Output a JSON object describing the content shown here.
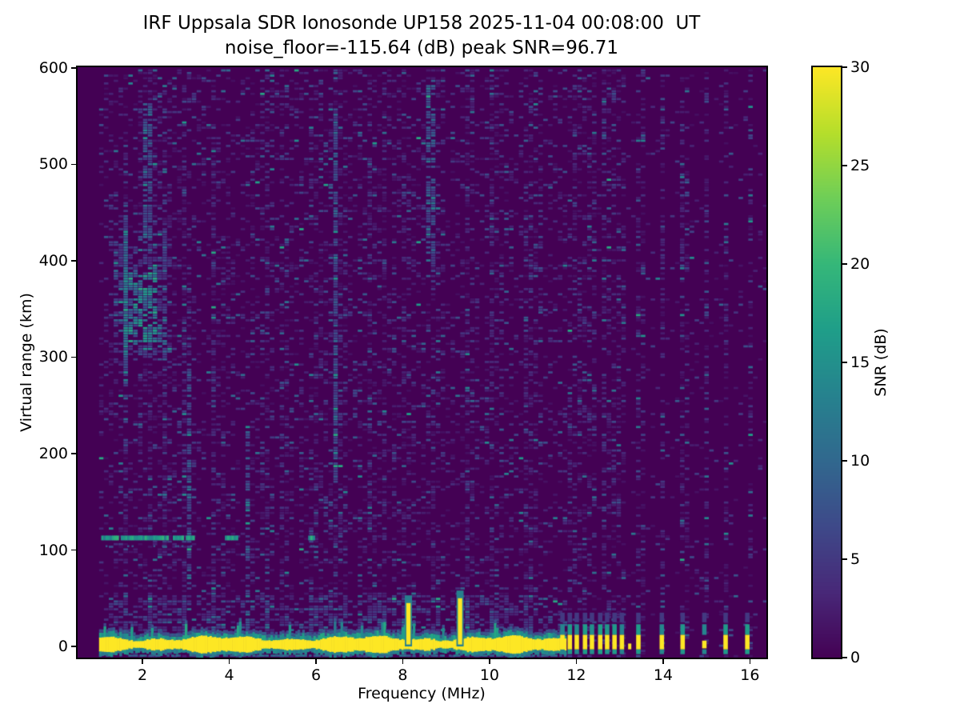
{
  "figure": {
    "title_line1": "IRF Uppsala SDR Ionosonde UP158 2025-11-04 00:08:00  UT",
    "title_line2": "noise_floor=-115.64 (dB) peak SNR=96.71",
    "xlabel": "Frequency (MHz)",
    "ylabel": "Virtual range (km)",
    "colorbar_label": "SNR (dB)"
  },
  "chart_data": {
    "type": "heatmap",
    "title": "IRF Uppsala SDR Ionosonde UP158 2025-11-04 00:08:00  UT",
    "subtitle": "noise_floor=-115.64 (dB) peak SNR=96.71",
    "station": "IRF Uppsala SDR Ionosonde UP158",
    "timestamp_ut": "2025-11-04 00:08:00",
    "noise_floor_db": -115.64,
    "peak_snr_db": 96.71,
    "colormap": "viridis",
    "xlabel": "Frequency (MHz)",
    "ylabel": "Virtual range (km)",
    "x_axis": {
      "range": [
        0.506,
        16.38
      ],
      "ticks": [
        2,
        4,
        6,
        8,
        10,
        12,
        14,
        16
      ]
    },
    "y_axis": {
      "range": [
        -11.6,
        600.8
      ],
      "ticks": [
        0,
        100,
        200,
        300,
        400,
        500,
        600
      ]
    },
    "colorbar": {
      "label": "SNR (dB)",
      "range": [
        0,
        30
      ],
      "ticks": [
        0,
        5,
        10,
        15,
        20,
        25,
        30
      ]
    },
    "features": {
      "data_start_mhz": 1.0,
      "background_snr_db": 0.5,
      "noise_speckle_max_db": 14,
      "ground_echo_band": {
        "freq_mhz": [
          1.0,
          11.72
        ],
        "core_range_km": [
          -5,
          9
        ],
        "core_snr_db": 30,
        "fringe_range_km": [
          -10,
          28
        ],
        "fringe_snr_db": 14
      },
      "vertical_spikes": [
        {
          "freq_mhz": 8.13,
          "top_km": 45,
          "snr_db": 30
        },
        {
          "freq_mhz": 9.32,
          "top_km": 50,
          "snr_db": 30
        }
      ],
      "tx_comb_bars_mhz": [
        11.68,
        11.85,
        12.01,
        12.2,
        12.36,
        12.55,
        12.71,
        12.88,
        13.05
      ],
      "isolated_bars_mhz": [
        13.43,
        13.97,
        14.45,
        14.95,
        15.44,
        15.94
      ],
      "bar_core_range_km": [
        -3,
        12
      ],
      "bar_fringe_range_km": [
        -8,
        23
      ],
      "e_region_echo": {
        "range_km": [
          110,
          115
        ],
        "snr_db": 17,
        "segments_mhz": [
          [
            1.05,
            1.45
          ],
          [
            1.5,
            2.55
          ],
          [
            2.7,
            2.92
          ],
          [
            3.0,
            3.18
          ],
          [
            3.9,
            4.15
          ],
          [
            5.82,
            5.95
          ]
        ]
      },
      "f_region_echo": {
        "core_freq_mhz": [
          1.52,
          2.28
        ],
        "core_range_km": [
          316,
          392
        ],
        "halo_freq_mhz": [
          1.3,
          2.55
        ],
        "halo_range_km": [
          298,
          432
        ],
        "snr_db": 14
      },
      "vertical_streaks": [
        {
          "freq_mhz": 6.37,
          "range_km": [
            170,
            555
          ]
        },
        {
          "freq_mhz": 2.07,
          "range_km": [
            425,
            565
          ]
        },
        {
          "freq_mhz": 1.55,
          "range_km": [
            270,
            460
          ]
        },
        {
          "freq_mhz": 3.05,
          "range_km": [
            60,
            300
          ]
        },
        {
          "freq_mhz": 4.35,
          "range_km": [
            20,
            230
          ]
        },
        {
          "freq_mhz": 8.6,
          "range_km": [
            400,
            590
          ]
        }
      ]
    }
  },
  "colors": {
    "figure_background": "#ffffff",
    "axes_text": "#000000",
    "viridis_stops": [
      "#440154",
      "#482878",
      "#3e4989",
      "#31688e",
      "#26828e",
      "#1f9e89",
      "#35b779",
      "#6ece58",
      "#b5de2b",
      "#fde725"
    ]
  }
}
